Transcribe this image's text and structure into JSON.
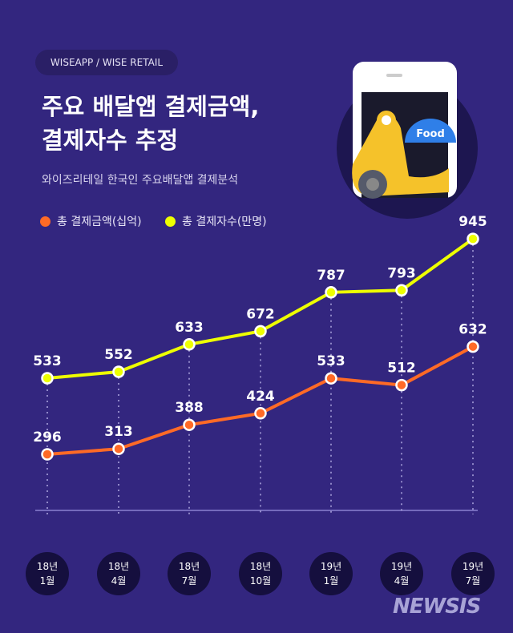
{
  "source": "WISEAPP / WISE RETAIL",
  "title_line1": "주요 배달앱 결제금액,",
  "title_line2": "결제자수 추정",
  "subtitle": "와이즈리테일 한국인 주요배달앱 결제분석",
  "illustration_text": "Food",
  "watermark": "NEWSIS",
  "chart_data": {
    "type": "line",
    "categories": [
      "18년 1월",
      "18년 4월",
      "18년 7월",
      "18년 10월",
      "19년 1월",
      "19년 4월",
      "19년 7월"
    ],
    "category_lines": [
      [
        "18년",
        "1월"
      ],
      [
        "18년",
        "4월"
      ],
      [
        "18년",
        "7월"
      ],
      [
        "18년",
        "10월"
      ],
      [
        "19년",
        "1월"
      ],
      [
        "19년",
        "4월"
      ],
      [
        "19년",
        "7월"
      ]
    ],
    "series": [
      {
        "name": "총 결제금액(십억)",
        "color": "#ff6a26",
        "values": [
          296,
          313,
          388,
          424,
          533,
          512,
          632
        ]
      },
      {
        "name": "총 결제자수(만명)",
        "color": "#eeff00",
        "values": [
          533,
          552,
          633,
          672,
          787,
          793,
          945
        ]
      }
    ],
    "data_labels": true,
    "legend": "top-left",
    "grid": false
  }
}
